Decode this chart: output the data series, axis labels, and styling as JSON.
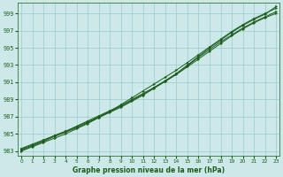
{
  "title": "Graphe pression niveau de la mer (hPa)",
  "bg_color": "#cce8e8",
  "grid_color": "#99cccc",
  "line_color": "#1a5c1a",
  "marker_color": "#1a5c1a",
  "x_ticks": [
    0,
    1,
    2,
    3,
    4,
    5,
    6,
    7,
    8,
    9,
    10,
    11,
    12,
    13,
    14,
    15,
    16,
    17,
    18,
    19,
    20,
    21,
    22,
    23
  ],
  "y_ticks": [
    983,
    985,
    987,
    989,
    991,
    993,
    995,
    997,
    999
  ],
  "xlim": [
    -0.3,
    23.3
  ],
  "ylim": [
    982.5,
    1000.2
  ],
  "series": [
    [
      983.2,
      983.7,
      984.2,
      984.8,
      985.3,
      985.9,
      986.5,
      987.1,
      987.7,
      988.3,
      989.0,
      989.7,
      990.4,
      991.1,
      991.9,
      992.8,
      993.7,
      994.6,
      995.5,
      996.4,
      997.2,
      997.9,
      998.5,
      999.0
    ],
    [
      983.0,
      983.5,
      984.0,
      984.5,
      985.0,
      985.6,
      986.2,
      986.9,
      987.6,
      988.4,
      989.2,
      990.0,
      990.8,
      991.6,
      992.4,
      993.3,
      994.2,
      995.1,
      996.0,
      996.9,
      997.7,
      998.4,
      999.0,
      999.6
    ],
    [
      983.3,
      983.8,
      984.3,
      984.8,
      985.3,
      985.8,
      986.4,
      987.0,
      987.6,
      988.2,
      988.9,
      989.6,
      990.4,
      991.2,
      992.0,
      992.9,
      993.9,
      994.8,
      995.7,
      996.5,
      997.3,
      998.0,
      998.6,
      999.2
    ],
    [
      983.1,
      983.6,
      984.1,
      984.7,
      985.2,
      985.7,
      986.3,
      986.9,
      987.5,
      988.1,
      988.8,
      989.5,
      990.3,
      991.1,
      992.0,
      993.0,
      994.0,
      995.0,
      995.9,
      996.8,
      997.6,
      998.3,
      998.9,
      999.8
    ]
  ]
}
